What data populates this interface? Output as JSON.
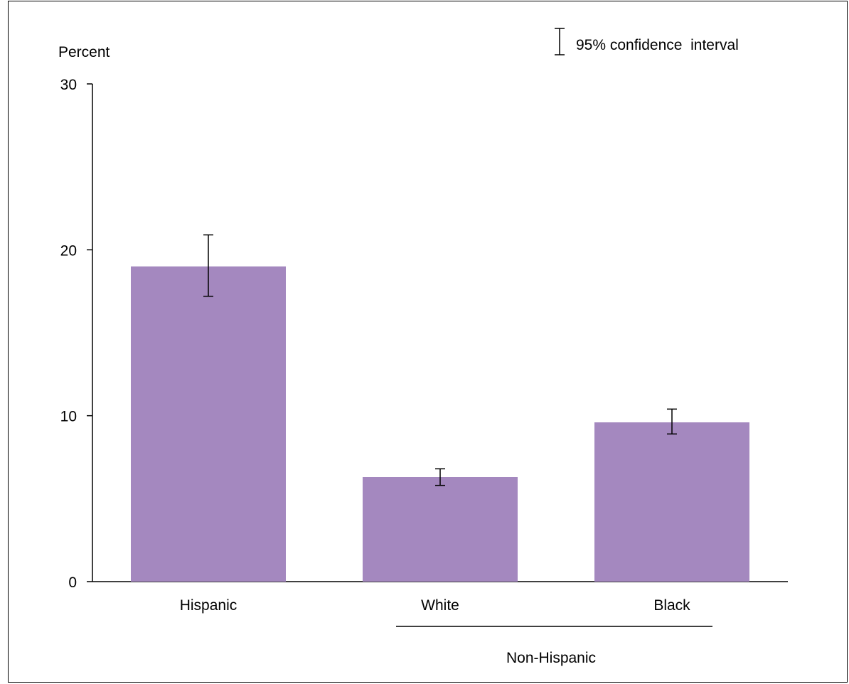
{
  "chart_data": {
    "type": "bar",
    "title": "",
    "xlabel": "",
    "ylabel": "Percent",
    "ylim": [
      0,
      30
    ],
    "yticks": [
      0,
      10,
      20,
      30
    ],
    "categories": [
      "Hispanic",
      "White",
      "Black"
    ],
    "values": [
      19.0,
      6.3,
      9.6
    ],
    "ci_low": [
      17.2,
      5.8,
      8.9
    ],
    "ci_high": [
      20.9,
      6.8,
      10.4
    ],
    "group_label": "Non-Hispanic",
    "legend": "95% confidence  interval",
    "legend_position": "top-right",
    "grid": false,
    "bar_color": "#a488bf"
  }
}
